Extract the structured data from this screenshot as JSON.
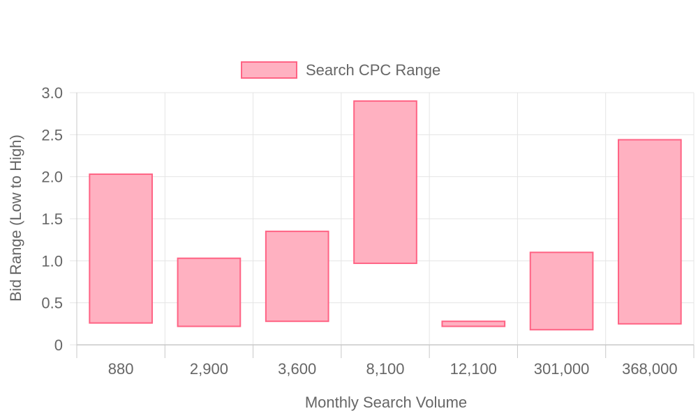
{
  "chart_data": {
    "type": "bar",
    "subtype": "floating-range",
    "categories": [
      "880",
      "2,900",
      "3,600",
      "8,100",
      "12,100",
      "301,000",
      "368,000"
    ],
    "series": [
      {
        "name": "Search CPC Range",
        "ranges": [
          [
            0.26,
            2.03
          ],
          [
            0.22,
            1.03
          ],
          [
            0.28,
            1.35
          ],
          [
            0.97,
            2.9
          ],
          [
            0.22,
            0.28
          ],
          [
            0.18,
            1.1
          ],
          [
            0.25,
            2.44
          ]
        ]
      }
    ],
    "xlabel": "Monthly Search Volume",
    "ylabel": "Bid Range (Low to High)",
    "ylim": [
      0,
      3.0
    ],
    "yticks": [
      "0",
      "0.5",
      "1.0",
      "1.5",
      "2.0",
      "2.5",
      "3.0"
    ],
    "ytick_values": [
      0,
      0.5,
      1.0,
      1.5,
      2.0,
      2.5,
      3.0
    ],
    "grid": true,
    "legend_position": "top",
    "colors": {
      "bar_fill": "#ffb1c1",
      "bar_stroke": "#ff6384",
      "grid": "#e5e5e5",
      "axis": "#c8c8c8",
      "text": "#666666"
    }
  }
}
